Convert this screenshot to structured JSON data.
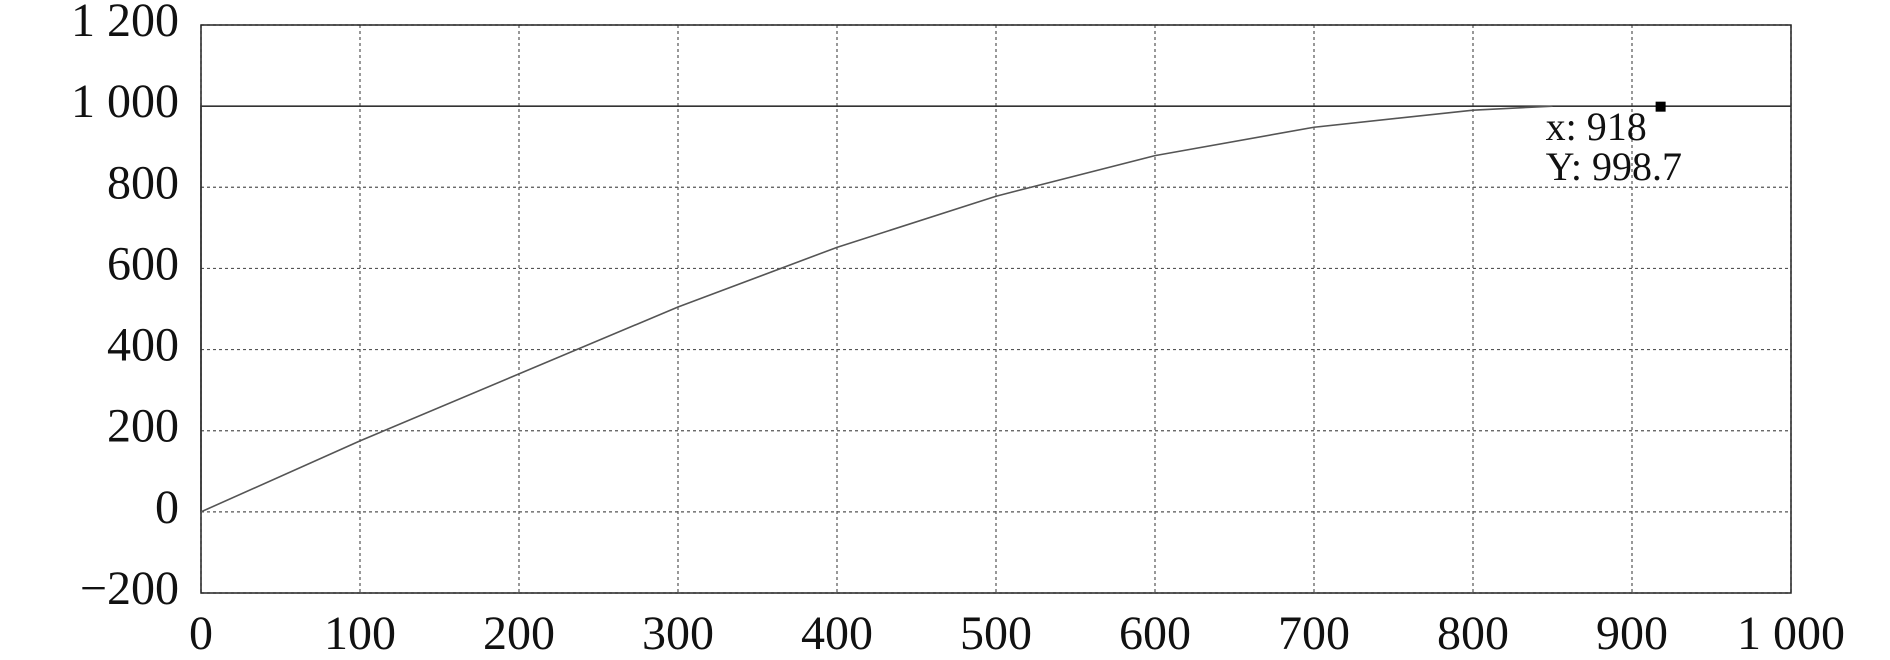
{
  "chart_data": {
    "type": "line",
    "xlim": [
      0,
      1000
    ],
    "xticks": [
      0,
      100,
      200,
      300,
      400,
      500,
      600,
      700,
      800,
      900,
      {
        "value": 1000,
        "label": "1 000"
      }
    ],
    "ylim": [
      -200,
      1200
    ],
    "yticks": [
      {
        "value": -200,
        "label": "−200"
      },
      0,
      200,
      400,
      600,
      800,
      {
        "value": 1000,
        "label": "1 000"
      },
      {
        "value": 1200,
        "label": "1 200"
      }
    ],
    "grid": true,
    "series": [
      {
        "color": "#333333",
        "x": [
          0,
          0,
          1000
        ],
        "values": [
          0,
          1000,
          1000
        ]
      },
      {
        "color": "#555555",
        "x": [
          0,
          100,
          200,
          300,
          400,
          500,
          600,
          700,
          800,
          850
        ],
        "values": [
          0,
          175,
          340,
          505,
          652,
          778,
          878,
          948,
          990,
          1000
        ]
      }
    ],
    "annotation": {
      "x": 918,
      "y": 998.7,
      "labels": [
        "x: 918",
        "Y: 998.7"
      ]
    }
  }
}
